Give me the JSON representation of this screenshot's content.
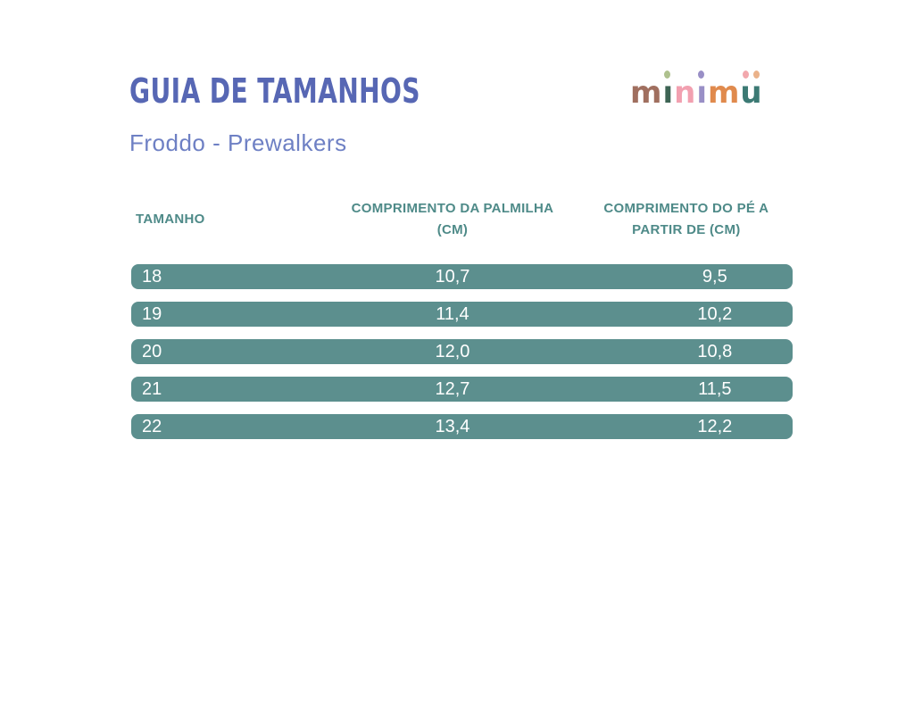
{
  "page": {
    "title": "GUIA DE TAMANHOS",
    "subtitle": "Froddo - Prewalkers",
    "colors": {
      "background": "#ffffff",
      "title_text": "#5767b4",
      "subtitle_text": "#6e80c4",
      "table_header_text": "#4e8a88",
      "row_background": "#5c8f8e",
      "row_text": "#ffffff"
    }
  },
  "logo": {
    "text": "minimü",
    "letters": [
      {
        "glyph": "m",
        "color": "#a06f5f"
      },
      {
        "glyph": "ı",
        "stem_color": "#3d6454",
        "dot_color": "#aec18e"
      },
      {
        "glyph": "n",
        "color": "#f2a0b0"
      },
      {
        "glyph": "ı",
        "stem_color": "#998fc6",
        "dot_color": "#998fc6"
      },
      {
        "glyph": "m",
        "color": "#e08a4d"
      },
      {
        "glyph": "u",
        "color": "#3c7a74",
        "dot_left_color": "#f2a8ad",
        "dot_right_color": "#eab28a"
      }
    ]
  },
  "table": {
    "header": {
      "col1": "TAMANHO",
      "col2_line1": "COMPRIMENTO DA PALMILHA",
      "col2_line2": "(CM)",
      "col3_line1": "COMPRIMENTO DO PÉ A",
      "col3_line2": "PARTIR DE (CM)"
    },
    "rows": [
      {
        "size": "18",
        "insole_cm": "10,7",
        "foot_cm": "9,5"
      },
      {
        "size": "19",
        "insole_cm": "11,4",
        "foot_cm": "10,2"
      },
      {
        "size": "20",
        "insole_cm": "12,0",
        "foot_cm": "10,8"
      },
      {
        "size": "21",
        "insole_cm": "12,7",
        "foot_cm": "11,5"
      },
      {
        "size": "22",
        "insole_cm": "13,4",
        "foot_cm": "12,2"
      }
    ]
  }
}
